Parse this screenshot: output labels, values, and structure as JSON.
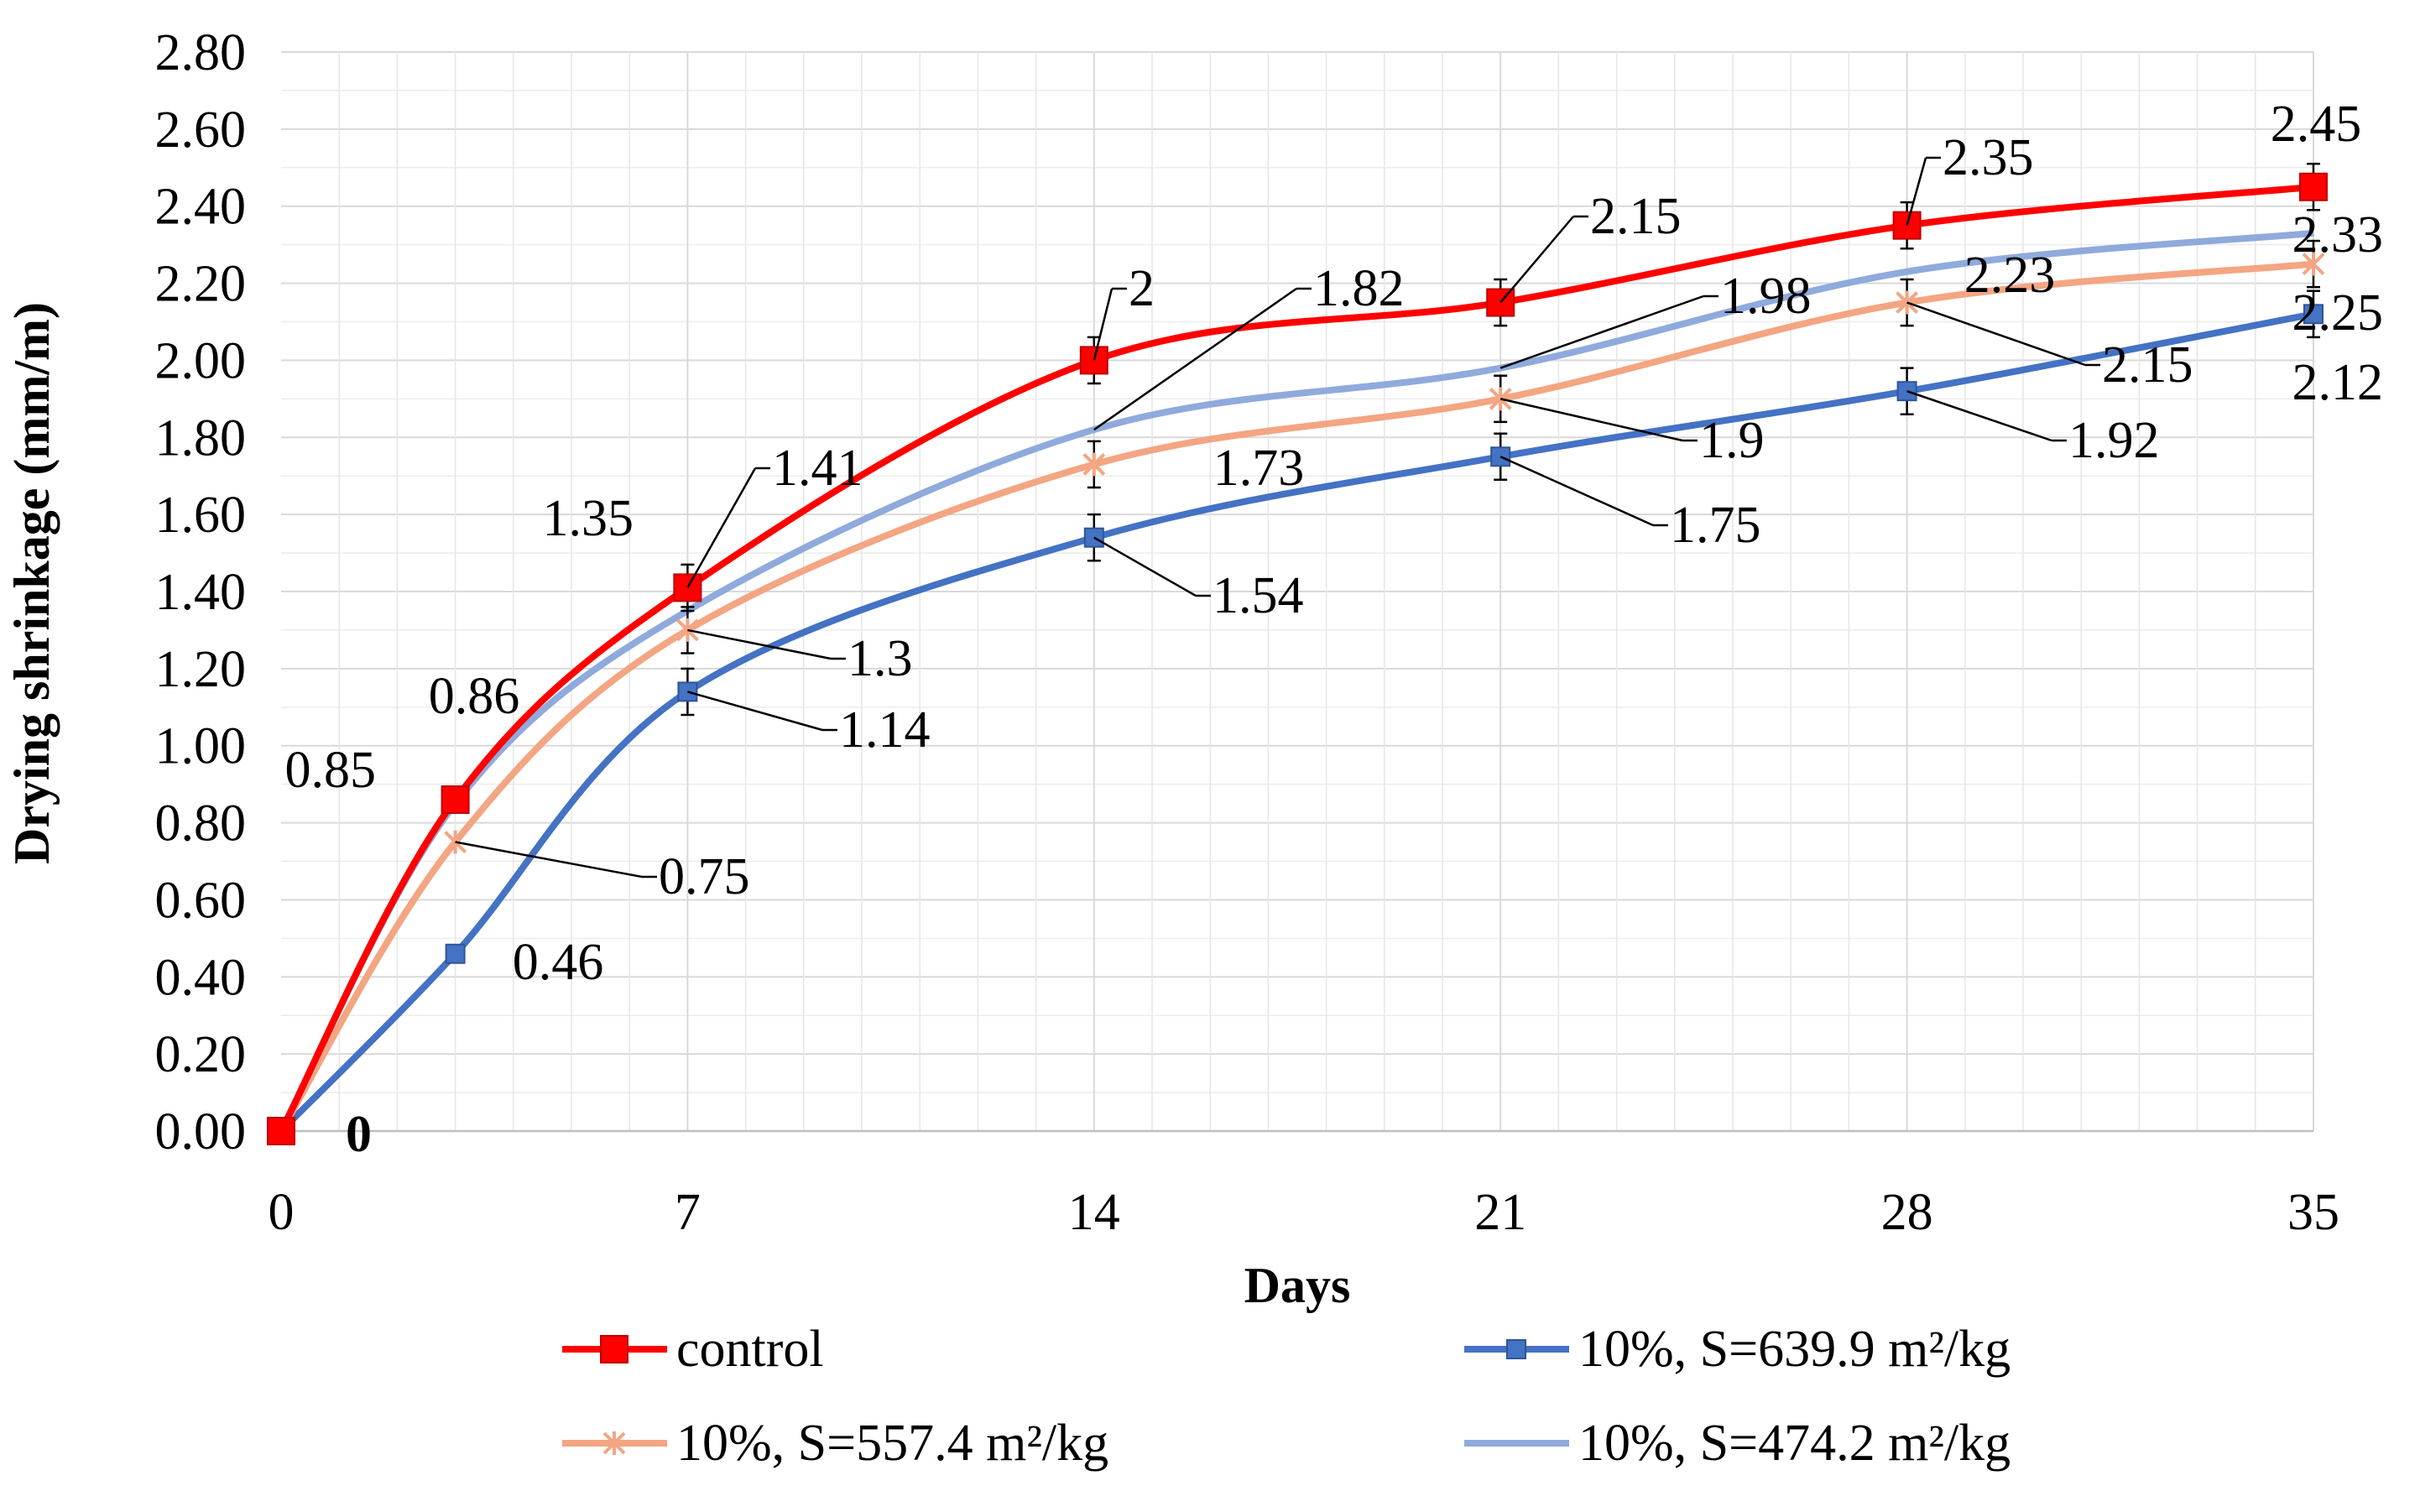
{
  "chart_data": {
    "type": "line",
    "title": "",
    "xlabel": "Days",
    "ylabel": "Drying shrinkage (mm/m)",
    "x": [
      0,
      3,
      7,
      14,
      21,
      28,
      35
    ],
    "xticks": [
      0,
      7,
      14,
      21,
      28,
      35
    ],
    "xlim": [
      0,
      35
    ],
    "ylim": [
      0,
      2.8
    ],
    "yticks": [
      "0.00",
      "0.20",
      "0.40",
      "0.60",
      "0.80",
      "1.00",
      "1.20",
      "1.40",
      "1.60",
      "1.80",
      "2.00",
      "2.20",
      "2.40",
      "2.60",
      "2.80"
    ],
    "grid": true,
    "legend_position": "bottom",
    "series": [
      {
        "name": "control",
        "color": "#ff0000",
        "marker": "square-large",
        "values": [
          0,
          0.86,
          1.41,
          2.0,
          2.15,
          2.35,
          2.45
        ],
        "labels": [
          "0",
          "0.86",
          "1.41",
          "2",
          "2.15",
          "2.35",
          "2.45"
        ]
      },
      {
        "name": "10%, S=639.9 m²/kg",
        "color": "#4472c4",
        "marker": "square-small",
        "values": [
          0,
          0.46,
          1.14,
          1.54,
          1.75,
          1.92,
          2.12
        ],
        "labels": [
          "0",
          "0.46",
          "1.14",
          "1.54",
          "1.75",
          "1.92",
          "2.12"
        ]
      },
      {
        "name": "10%, S=557.4 m²/kg",
        "color": "#f4a582",
        "marker": "cross",
        "values": [
          0,
          0.75,
          1.3,
          1.73,
          1.9,
          2.15,
          2.25
        ],
        "labels": [
          "0",
          "0.75",
          "1.3",
          "1.73",
          "1.9",
          "2.15",
          "2.25"
        ]
      },
      {
        "name": "10%, S=474.2 m²/kg",
        "color": "#8faadc",
        "marker": "none",
        "values": [
          0,
          0.85,
          1.35,
          1.82,
          1.98,
          2.23,
          2.33
        ],
        "labels": [
          "0",
          "0.85",
          "1.35",
          "1.82",
          "1.98",
          "2.23",
          "2.33"
        ]
      }
    ]
  }
}
